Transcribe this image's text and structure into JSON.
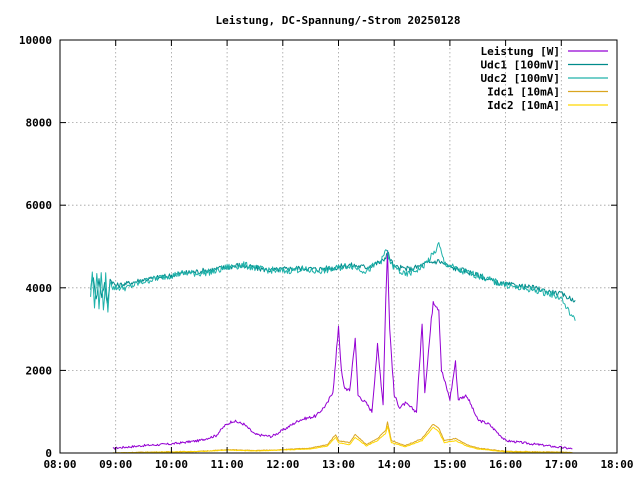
{
  "chart_data": {
    "type": "line",
    "title": "Leistung, DC-Spannung/-Strom 20250128",
    "xlabel": "",
    "ylabel": "",
    "x_unit": "time of day (decimal hours)",
    "xlim": [
      8,
      18
    ],
    "ylim": [
      0,
      10000
    ],
    "x_ticks": [
      "08:00",
      "09:00",
      "10:00",
      "11:00",
      "12:00",
      "13:00",
      "14:00",
      "15:00",
      "16:00",
      "17:00",
      "18:00"
    ],
    "y_ticks": [
      "0",
      "2000",
      "4000",
      "6000",
      "8000",
      "10000"
    ],
    "grid": true,
    "legend_position": "top-right",
    "series": [
      {
        "name": "Leistung [W]",
        "color": "#9400d3",
        "points": [
          [
            8.95,
            100
          ],
          [
            9.0,
            120
          ],
          [
            9.5,
            180
          ],
          [
            10.0,
            220
          ],
          [
            10.5,
            300
          ],
          [
            10.8,
            420
          ],
          [
            10.95,
            650
          ],
          [
            11.1,
            780
          ],
          [
            11.3,
            700
          ],
          [
            11.5,
            450
          ],
          [
            11.8,
            400
          ],
          [
            12.0,
            550
          ],
          [
            12.3,
            800
          ],
          [
            12.6,
            900
          ],
          [
            12.8,
            1200
          ],
          [
            12.9,
            1500
          ],
          [
            12.95,
            2200
          ],
          [
            13.0,
            3100
          ],
          [
            13.05,
            2000
          ],
          [
            13.1,
            1600
          ],
          [
            13.2,
            1500
          ],
          [
            13.3,
            2800
          ],
          [
            13.35,
            1400
          ],
          [
            13.5,
            1200
          ],
          [
            13.6,
            1000
          ],
          [
            13.7,
            2600
          ],
          [
            13.8,
            1200
          ],
          [
            13.85,
            3800
          ],
          [
            13.88,
            4900
          ],
          [
            13.92,
            3000
          ],
          [
            14.0,
            1400
          ],
          [
            14.1,
            1100
          ],
          [
            14.2,
            1200
          ],
          [
            14.4,
            1000
          ],
          [
            14.5,
            3100
          ],
          [
            14.55,
            1500
          ],
          [
            14.7,
            3700
          ],
          [
            14.8,
            3500
          ],
          [
            14.85,
            2000
          ],
          [
            15.0,
            1300
          ],
          [
            15.1,
            2200
          ],
          [
            15.15,
            1300
          ],
          [
            15.3,
            1400
          ],
          [
            15.5,
            800
          ],
          [
            15.7,
            700
          ],
          [
            16.0,
            300
          ],
          [
            16.3,
            250
          ],
          [
            16.6,
            200
          ],
          [
            16.9,
            150
          ],
          [
            17.2,
            100
          ]
        ]
      },
      {
        "name": "Udc1 [100mV]",
        "color": "#008b8b",
        "points": [
          [
            8.55,
            4000
          ],
          [
            8.6,
            4300
          ],
          [
            8.65,
            3700
          ],
          [
            8.7,
            4200
          ],
          [
            8.75,
            3800
          ],
          [
            8.8,
            4100
          ],
          [
            8.85,
            3600
          ],
          [
            8.9,
            4200
          ],
          [
            9.0,
            4050
          ],
          [
            9.2,
            4100
          ],
          [
            9.5,
            4200
          ],
          [
            9.8,
            4250
          ],
          [
            10.0,
            4300
          ],
          [
            10.2,
            4350
          ],
          [
            10.5,
            4400
          ],
          [
            10.8,
            4450
          ],
          [
            11.0,
            4500
          ],
          [
            11.2,
            4550
          ],
          [
            11.5,
            4480
          ],
          [
            11.8,
            4420
          ],
          [
            12.0,
            4450
          ],
          [
            12.3,
            4480
          ],
          [
            12.6,
            4450
          ],
          [
            12.9,
            4480
          ],
          [
            13.2,
            4550
          ],
          [
            13.5,
            4500
          ],
          [
            13.8,
            4650
          ],
          [
            13.88,
            4850
          ],
          [
            14.0,
            4500
          ],
          [
            14.3,
            4450
          ],
          [
            14.6,
            4600
          ],
          [
            14.8,
            4650
          ],
          [
            15.0,
            4500
          ],
          [
            15.3,
            4400
          ],
          [
            15.6,
            4250
          ],
          [
            15.9,
            4100
          ],
          [
            16.2,
            4050
          ],
          [
            16.5,
            4000
          ],
          [
            16.8,
            3900
          ],
          [
            17.0,
            3850
          ],
          [
            17.15,
            3750
          ],
          [
            17.25,
            3700
          ]
        ]
      },
      {
        "name": "Udc2 [100mV]",
        "color": "#20b2aa",
        "points": [
          [
            8.55,
            3800
          ],
          [
            8.58,
            4400
          ],
          [
            8.62,
            3500
          ],
          [
            8.66,
            4400
          ],
          [
            8.7,
            3500
          ],
          [
            8.74,
            4400
          ],
          [
            8.78,
            3400
          ],
          [
            8.82,
            4300
          ],
          [
            8.86,
            3400
          ],
          [
            8.9,
            4200
          ],
          [
            8.95,
            4000
          ],
          [
            9.2,
            4000
          ],
          [
            9.5,
            4150
          ],
          [
            9.8,
            4250
          ],
          [
            10.0,
            4300
          ],
          [
            10.2,
            4350
          ],
          [
            10.5,
            4350
          ],
          [
            10.8,
            4400
          ],
          [
            11.0,
            4500
          ],
          [
            11.3,
            4550
          ],
          [
            11.6,
            4450
          ],
          [
            12.0,
            4400
          ],
          [
            12.3,
            4450
          ],
          [
            12.6,
            4400
          ],
          [
            12.9,
            4450
          ],
          [
            13.2,
            4550
          ],
          [
            13.5,
            4400
          ],
          [
            13.8,
            4700
          ],
          [
            13.85,
            4950
          ],
          [
            13.95,
            4550
          ],
          [
            14.2,
            4300
          ],
          [
            14.5,
            4500
          ],
          [
            14.7,
            4800
          ],
          [
            14.8,
            5050
          ],
          [
            14.9,
            4600
          ],
          [
            15.2,
            4400
          ],
          [
            15.5,
            4300
          ],
          [
            15.8,
            4150
          ],
          [
            16.2,
            4000
          ],
          [
            16.5,
            3950
          ],
          [
            16.8,
            3850
          ],
          [
            17.0,
            3750
          ],
          [
            17.1,
            3500
          ],
          [
            17.2,
            3300
          ],
          [
            17.25,
            3200
          ]
        ]
      },
      {
        "name": "Idc1 [10mA]",
        "color": "#daa520",
        "points": [
          [
            8.95,
            0
          ],
          [
            9.5,
            20
          ],
          [
            10.0,
            30
          ],
          [
            10.5,
            40
          ],
          [
            11.0,
            80
          ],
          [
            11.5,
            60
          ],
          [
            12.0,
            80
          ],
          [
            12.5,
            120
          ],
          [
            12.8,
            200
          ],
          [
            12.95,
            450
          ],
          [
            13.0,
            300
          ],
          [
            13.2,
            250
          ],
          [
            13.3,
            450
          ],
          [
            13.5,
            200
          ],
          [
            13.7,
            350
          ],
          [
            13.85,
            550
          ],
          [
            13.88,
            750
          ],
          [
            13.95,
            300
          ],
          [
            14.2,
            180
          ],
          [
            14.5,
            350
          ],
          [
            14.7,
            700
          ],
          [
            14.8,
            600
          ],
          [
            14.9,
            300
          ],
          [
            15.1,
            350
          ],
          [
            15.3,
            200
          ],
          [
            15.5,
            120
          ],
          [
            16.0,
            40
          ],
          [
            16.5,
            30
          ],
          [
            17.0,
            20
          ],
          [
            17.2,
            10
          ]
        ]
      },
      {
        "name": "Idc2 [10mA]",
        "color": "#ffd700",
        "points": [
          [
            8.95,
            0
          ],
          [
            9.5,
            15
          ],
          [
            10.0,
            25
          ],
          [
            10.5,
            35
          ],
          [
            11.0,
            70
          ],
          [
            11.5,
            50
          ],
          [
            12.0,
            70
          ],
          [
            12.5,
            100
          ],
          [
            12.8,
            170
          ],
          [
            12.95,
            380
          ],
          [
            13.0,
            250
          ],
          [
            13.2,
            200
          ],
          [
            13.3,
            380
          ],
          [
            13.5,
            170
          ],
          [
            13.7,
            300
          ],
          [
            13.85,
            480
          ],
          [
            13.88,
            650
          ],
          [
            13.95,
            250
          ],
          [
            14.2,
            150
          ],
          [
            14.5,
            300
          ],
          [
            14.7,
            620
          ],
          [
            14.8,
            520
          ],
          [
            14.9,
            250
          ],
          [
            15.1,
            300
          ],
          [
            15.3,
            170
          ],
          [
            15.5,
            100
          ],
          [
            16.0,
            30
          ],
          [
            16.5,
            20
          ],
          [
            17.0,
            15
          ],
          [
            17.2,
            8
          ]
        ]
      }
    ]
  }
}
